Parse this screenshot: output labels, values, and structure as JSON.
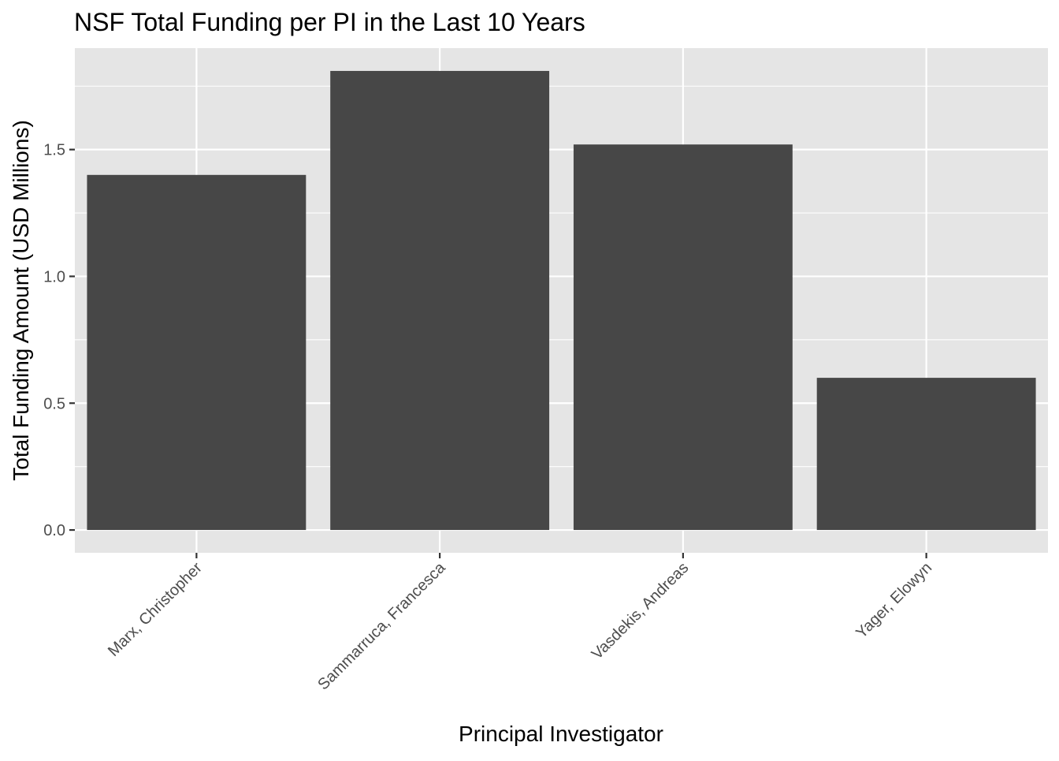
{
  "chart_data": {
    "type": "bar",
    "title": "NSF Total Funding per PI in the Last 10 Years",
    "xlabel": "Principal Investigator",
    "ylabel": "Total Funding Amount (USD Millions)",
    "categories": [
      "Marx, Christopher",
      "Sammarruca, Francesca",
      "Vasdekis, Andreas",
      "Yager, Elowyn"
    ],
    "values": [
      1.4,
      1.81,
      1.52,
      0.6
    ],
    "ylim": [
      -0.09,
      1.9
    ],
    "yticks": [
      0.0,
      0.5,
      1.0,
      1.5
    ],
    "ytick_labels": [
      "0.0",
      "0.5",
      "1.0",
      "1.5"
    ],
    "grid": true,
    "legend": "none",
    "colors": {
      "panel": "#e5e5e5",
      "grid": "#ffffff",
      "bar": "#474747",
      "tick": "#333333",
      "tick_label": "#4d4d4d"
    }
  }
}
